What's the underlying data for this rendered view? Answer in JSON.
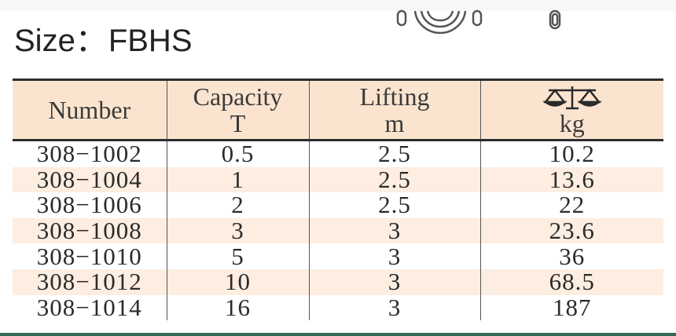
{
  "title": {
    "label": "Size",
    "separator": "：",
    "model": "FBHS"
  },
  "table": {
    "headers": [
      {
        "line1": "Number",
        "line2": ""
      },
      {
        "line1": "Capacity",
        "line2": "T"
      },
      {
        "line1": "Lifting",
        "line2": "m"
      },
      {
        "icon": "weighing-scale-icon",
        "line2": "kg"
      }
    ],
    "rows": [
      [
        "308−1002",
        "0.5",
        "2.5",
        "10.2"
      ],
      [
        "308−1004",
        "1",
        "2.5",
        "13.6"
      ],
      [
        "308−1006",
        "2",
        "2.5",
        "22"
      ],
      [
        "308−1008",
        "3",
        "3",
        "23.6"
      ],
      [
        "308−1010",
        "5",
        "3",
        "36"
      ],
      [
        "308−1012",
        "10",
        "3",
        "68.5"
      ],
      [
        "308−1014",
        "16",
        "3",
        "187"
      ]
    ]
  },
  "colors": {
    "header_bg": "#fbe4cf",
    "stripe_bg": "#fdeee1",
    "rule": "#2d2d2d",
    "bottom_accent": "#2f6b57"
  }
}
